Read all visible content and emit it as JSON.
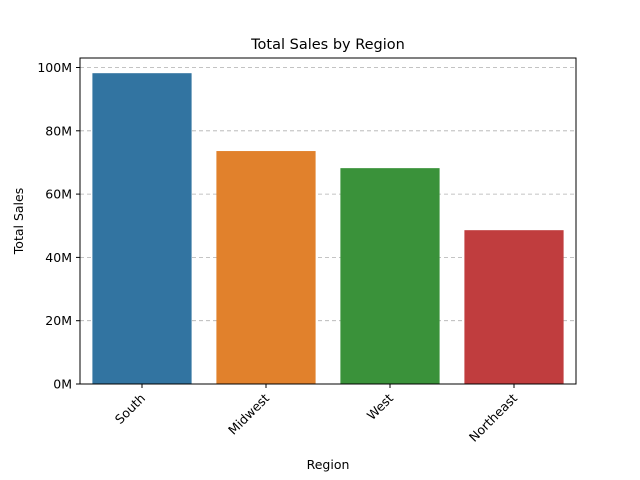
{
  "chart_data": {
    "type": "bar",
    "title": "Total Sales by Region",
    "xlabel": "Region",
    "ylabel": "Total Sales",
    "categories": [
      "South",
      "Midwest",
      "West",
      "Northeast"
    ],
    "values": [
      98200000,
      73600000,
      68200000,
      48600000
    ],
    "colors": [
      "#3274a1",
      "#e1812c",
      "#3a923a",
      "#c03d3e"
    ],
    "ylim": [
      0,
      103000000
    ],
    "yticks": [
      0,
      20000000,
      40000000,
      60000000,
      80000000,
      100000000
    ],
    "ytick_labels": [
      "0M",
      "20M",
      "40M",
      "60M",
      "80M",
      "100M"
    ],
    "grid": "y-dashed",
    "legend": "none"
  }
}
